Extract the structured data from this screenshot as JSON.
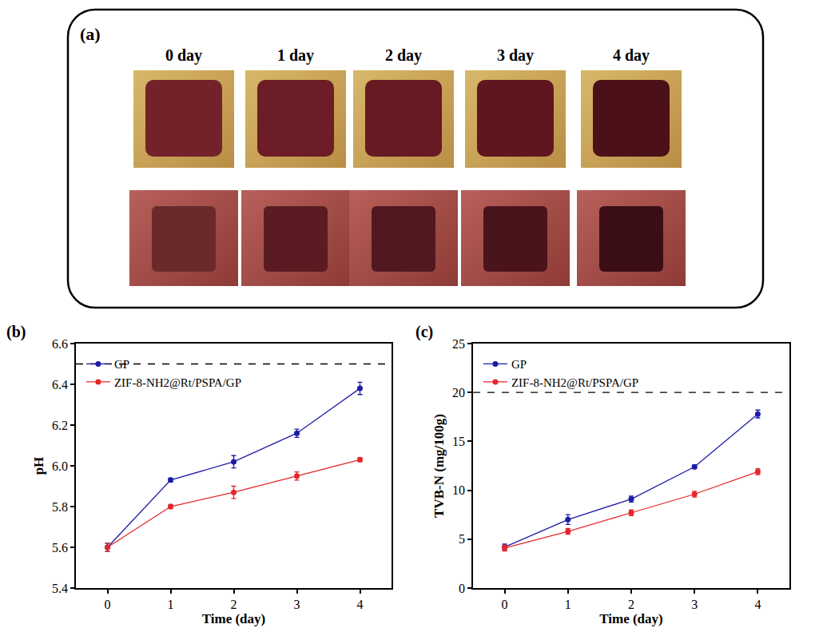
{
  "photo_panel": {
    "label": "(a)",
    "columns": [
      "0 day",
      "1 day",
      "2 day",
      "3 day",
      "4 day"
    ]
  },
  "chart_data": [
    {
      "type": "line",
      "panel": "(b)",
      "x_label": "Time (day)",
      "y_label": "pH",
      "x": [
        0,
        1,
        2,
        3,
        4
      ],
      "xlim": [
        -0.5,
        4.5
      ],
      "xticks": [
        0,
        1,
        2,
        3,
        4
      ],
      "ylim": [
        5.4,
        6.6
      ],
      "yticks": [
        5.4,
        5.6,
        5.8,
        {
          "value": 6,
          "label": "6.0"
        },
        6.2,
        6.4,
        6.6
      ],
      "threshold": 6.5,
      "legend": "upper left",
      "grid": false,
      "marker": "circle",
      "series": [
        {
          "name": "GP",
          "color": "#1c1ca6",
          "values": [
            5.6,
            5.93,
            6.02,
            6.16,
            6.38
          ],
          "error": [
            0.02,
            0.01,
            0.03,
            0.02,
            0.03
          ]
        },
        {
          "name": "ZIF-8-NH2@Rt/PSPA/GP",
          "color": "#e5262a",
          "values": [
            5.6,
            5.8,
            5.87,
            5.95,
            6.03
          ],
          "error": [
            0.02,
            0.01,
            0.03,
            0.02,
            0.01
          ]
        }
      ]
    },
    {
      "type": "line",
      "panel": "(c)",
      "x_label": "Time (day)",
      "y_label": "TVB-N (mg/100g)",
      "x": [
        0,
        1,
        2,
        3,
        4
      ],
      "xlim": [
        -0.5,
        4.5
      ],
      "xticks": [
        0,
        1,
        2,
        3,
        4
      ],
      "ylim": [
        0,
        25
      ],
      "yticks": [
        0,
        5,
        10,
        15,
        20,
        25
      ],
      "threshold": 20,
      "legend": "upper left",
      "grid": false,
      "marker": "circle",
      "series": [
        {
          "name": "GP",
          "color": "#1c1ca6",
          "values": [
            4.2,
            7.0,
            9.1,
            12.4,
            17.8
          ],
          "error": [
            0.3,
            0.5,
            0.3,
            0.2,
            0.4
          ]
        },
        {
          "name": "ZIF-8-NH2@Rt/PSPA/GP",
          "color": "#e5262a",
          "values": [
            4.1,
            5.8,
            7.7,
            9.6,
            11.9
          ],
          "error": [
            0.3,
            0.3,
            0.3,
            0.3,
            0.3
          ]
        }
      ]
    }
  ]
}
